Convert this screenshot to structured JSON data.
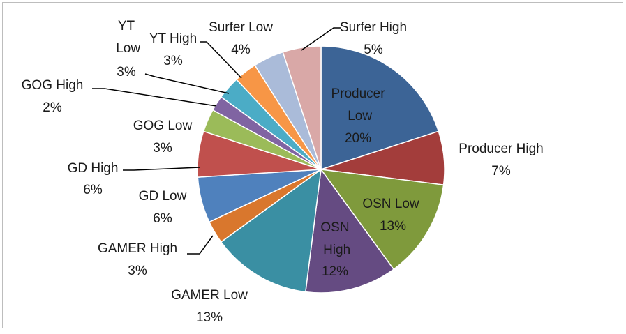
{
  "chart_data": {
    "type": "pie",
    "categories": [
      "Producer Low",
      "Producer High",
      "OSN Low",
      "OSN High",
      "GAMER Low",
      "GAMER High",
      "GD Low",
      "GD High",
      "GOG Low",
      "GOG High",
      "YT Low",
      "YT High",
      "Surfer Low",
      "Surfer High"
    ],
    "values": [
      20,
      7,
      13,
      12,
      13,
      3,
      6,
      6,
      3,
      2,
      3,
      3,
      4,
      5
    ],
    "value_labels": [
      "20%",
      "7%",
      "13%",
      "12%",
      "13%",
      "3%",
      "6%",
      "6%",
      "3%",
      "2%",
      "3%",
      "3%",
      "4%",
      "5%"
    ],
    "colors": [
      "#3c6496",
      "#a33d3b",
      "#7f9a3c",
      "#654b82",
      "#3a8fa3",
      "#d9772d",
      "#4f81bd",
      "#c0504d",
      "#9bbb59",
      "#8064a2",
      "#4bacc6",
      "#f79646",
      "#aabbd9",
      "#d9a8a7"
    ]
  }
}
